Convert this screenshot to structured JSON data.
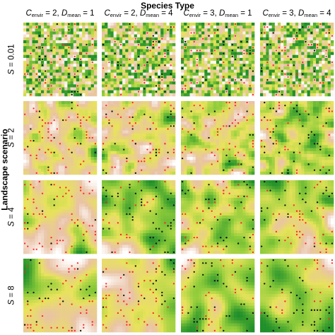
{
  "chart_data": {
    "type": "heatmap",
    "title": "Species Type",
    "ylabel": "Landscape scenario",
    "columns": [
      {
        "C_label": "C",
        "C_sub": "envir",
        "C_value": "= 2,",
        "D_label": "D",
        "D_sub": "mean",
        "D_value": "= 1",
        "C": 2,
        "D": 1
      },
      {
        "C_label": "C",
        "C_sub": "envir",
        "C_value": "= 2,",
        "D_label": "D",
        "D_sub": "mean",
        "D_value": "= 4",
        "C": 2,
        "D": 4
      },
      {
        "C_label": "C",
        "C_sub": "envir",
        "C_value": "= 3,",
        "D_label": "D",
        "D_sub": "mean",
        "D_value": "= 1",
        "C": 3,
        "D": 1
      },
      {
        "C_label": "C",
        "C_sub": "envir",
        "C_value": "= 3,",
        "D_label": "D",
        "D_sub": "mean",
        "D_value": "= 4",
        "C": 3,
        "D": 4
      }
    ],
    "rows": [
      {
        "label": "S",
        "value": "= 0.01",
        "S": 0.01
      },
      {
        "label": "S",
        "value": "= 2",
        "S": 2
      },
      {
        "label": "S",
        "value": "= 4",
        "S": 4
      },
      {
        "label": "S",
        "value": "= 8",
        "S": 8
      }
    ],
    "grid_cells_per_panel": 25,
    "colors": {
      "low": "#ffffff",
      "mid_low": "#e9c2a6",
      "mid": "#e8e35a",
      "mid_high": "#8fcc3a",
      "high": "#1f8f2a",
      "dot_occupied": "#111111",
      "dot_empty": "#ff2a2a"
    }
  }
}
